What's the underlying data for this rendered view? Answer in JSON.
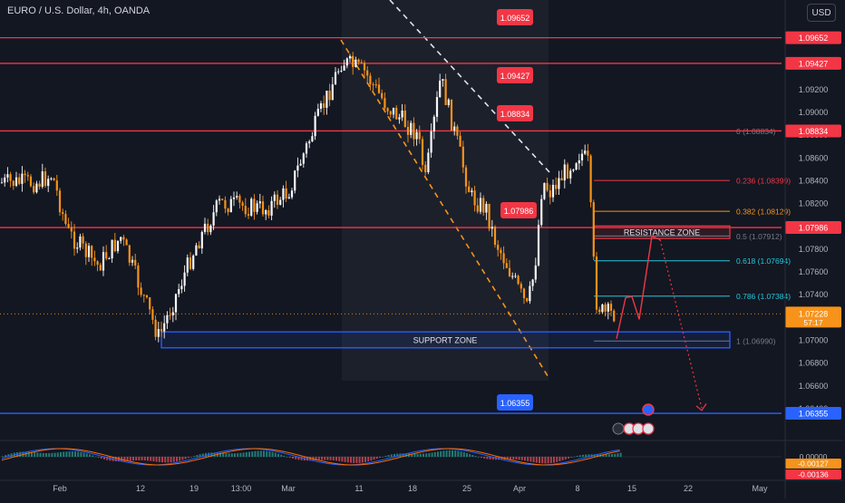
{
  "symbol": "EURO / U.S. Dollar, 4h, OANDA",
  "currency_button": "USD",
  "colors": {
    "bg": "#131722",
    "up": "#f7f7f7",
    "down": "#f7931a",
    "red": "#f23645",
    "blue": "#2962ff",
    "axis": "#b2b5be"
  },
  "chart_data": {
    "type": "candlestick",
    "instrument": "EURO / U.S. Dollar",
    "timeframe": "4h",
    "source": "OANDA",
    "ylim": [
      1.0626,
      1.0984
    ],
    "y_ticks": [
      "1.09200",
      "1.09000",
      "1.08800",
      "1.08600",
      "1.08400",
      "1.08200",
      "1.08000",
      "1.07800",
      "1.07600",
      "1.07400",
      "1.07000",
      "1.06800",
      "1.06600",
      "1.06400"
    ],
    "x_ticks": [
      "Feb",
      "12",
      "19",
      "13:00",
      "Mar",
      "11",
      "18",
      "25",
      "Apr",
      "8",
      "15",
      "22",
      "May"
    ],
    "close_trend": [
      {
        "x": "Jan 29",
        "y": 1.0838
      },
      {
        "x": "Jan 31",
        "y": 1.0845
      },
      {
        "x": "Feb 2",
        "y": 1.0795
      },
      {
        "x": "Feb 6",
        "y": 1.0765
      },
      {
        "x": "Feb 9",
        "y": 1.079
      },
      {
        "x": "Feb 13",
        "y": 1.072
      },
      {
        "x": "Feb 14",
        "y": 1.0702
      },
      {
        "x": "Feb 19",
        "y": 1.0785
      },
      {
        "x": "Feb 22",
        "y": 1.082
      },
      {
        "x": "Feb 28",
        "y": 1.0815
      },
      {
        "x": "Mar 1",
        "y": 1.083
      },
      {
        "x": "Mar 8",
        "y": 1.0945
      },
      {
        "x": "Mar 11",
        "y": 1.0935
      },
      {
        "x": "Mar 14",
        "y": 1.0905
      },
      {
        "x": "Mar 18",
        "y": 1.088
      },
      {
        "x": "Mar 19",
        "y": 1.084
      },
      {
        "x": "Mar 21",
        "y": 1.093
      },
      {
        "x": "Mar 25",
        "y": 1.0825
      },
      {
        "x": "Mar 27",
        "y": 1.0815
      },
      {
        "x": "Mar 28",
        "y": 1.079
      },
      {
        "x": "Apr 2",
        "y": 1.0728
      },
      {
        "x": "Apr 3",
        "y": 1.0762
      },
      {
        "x": "Apr 4",
        "y": 1.084
      },
      {
        "x": "Apr 5",
        "y": 1.083
      },
      {
        "x": "Apr 9",
        "y": 1.0865
      },
      {
        "x": "Apr 10",
        "y": 1.0855
      },
      {
        "x": "Apr 11",
        "y": 1.0735
      },
      {
        "x": "Apr 12",
        "y": 1.0723
      }
    ],
    "horizontal_levels": [
      {
        "label": "1.09652",
        "value": 1.09652
      },
      {
        "label": "1.09427",
        "value": 1.09427
      },
      {
        "label": "1.08834",
        "value": 1.08834
      },
      {
        "label": "1.07986",
        "value": 1.07986
      }
    ],
    "support_level": {
      "label": "1.06355",
      "value": 1.06355
    },
    "last_price": {
      "label": "1.07228",
      "value": 1.07228,
      "countdown": "57:17"
    },
    "fibonacci": [
      {
        "label": "0 (1.08834)",
        "value": 1.08834
      },
      {
        "label": "0.236 (1.08399)",
        "value": 1.08399
      },
      {
        "label": "0.382 (1.08129)",
        "value": 1.08129
      },
      {
        "label": "0.5 (1.07912)",
        "value": 1.07912
      },
      {
        "label": "0.618 (1.07694)",
        "value": 1.07694
      },
      {
        "label": "0.786 (1.07384)",
        "value": 1.07384
      },
      {
        "label": "1 (1.06990)",
        "value": 1.0699
      }
    ],
    "zones": {
      "resistance": "RESISTANCE ZONE",
      "support": "SUPPORT ZONE"
    },
    "indicator": {
      "type": "MACD",
      "ticks": [
        "0.00000"
      ],
      "values": [
        "-0.00127",
        "-0.00136"
      ]
    }
  }
}
